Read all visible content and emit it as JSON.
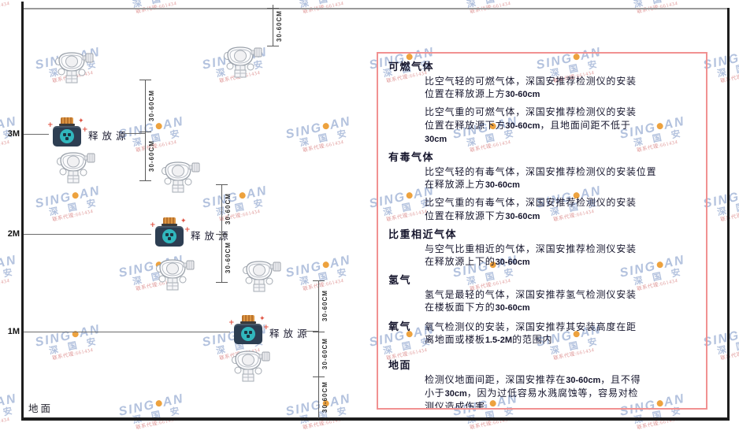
{
  "colors": {
    "panel_border": "#f19191",
    "frame_dark": "#1d1d1d",
    "ceiling_gray": "#9a9a9a",
    "dim_line": "#5a5a5a",
    "text_dark": "#16162d",
    "watermark_blue": "#b3c2de",
    "watermark_orange": "#eda23e",
    "watermark_red": "#e09a9a",
    "source_body": "#2d3e52",
    "source_teal": "#31b7bd",
    "source_cap": "#d08a38",
    "spark_red": "#e05545"
  },
  "watermark": {
    "brand_prefix": "SING",
    "brand_suffix": "AN",
    "cjk": "深 国 安",
    "subtext": "联系代理:661434"
  },
  "diagram": {
    "axis_labels": [
      "3M",
      "2M",
      "1M"
    ],
    "ground_label": "地面",
    "release_source_label": "释放源",
    "dimension_label": "30-60CM"
  },
  "panel": {
    "sections": [
      {
        "heading": "可燃气体",
        "inline": false,
        "extra_gap": false,
        "paragraphs": [
          "比空气轻的可燃气体，深国安推荐检测仪的安装\n位置在释放源上方30-60cm",
          "比空气重的可燃气体，深国安推荐检测仪的安装\n位置在释放源下方30-60cm，且地面间距不低于\n30cm"
        ]
      },
      {
        "heading": "有毒气体",
        "inline": false,
        "extra_gap": false,
        "paragraphs": [
          "比空气轻的有毒气体，深国安推荐检测仪的安装位置\n在释放源上方30-60cm",
          "比空气重的有毒气体，深国安推荐检测仪的安装\n位置在释放源下方30-60cm"
        ]
      },
      {
        "heading": "比重相近气体",
        "inline": false,
        "extra_gap": false,
        "paragraphs": [
          "与空气比重相近的气体，深国安推荐检测仪安装\n在释放源上下的30-60cm"
        ]
      },
      {
        "heading": "氢气",
        "inline": false,
        "extra_gap": false,
        "paragraphs": [
          "氢气是最轻的气体，深国安推荐氢气检测仪安装\n在楼板面下方的30-60cm"
        ]
      },
      {
        "heading": "氧气",
        "inline": true,
        "extra_gap": false,
        "paragraphs": [
          "氧气检测仪的安装，深国安推荐其安装高度在距\n离地面或楼板1.5-2M的范围内"
        ]
      },
      {
        "heading": "地面",
        "inline": false,
        "extra_gap": true,
        "paragraphs": [
          "检测仪地面间距，深国安推荐在30-60cm，且不得\n小于30cm，因为过低容易水溅腐蚀等，容易对检\n测仪造成伤害"
        ]
      }
    ]
  }
}
